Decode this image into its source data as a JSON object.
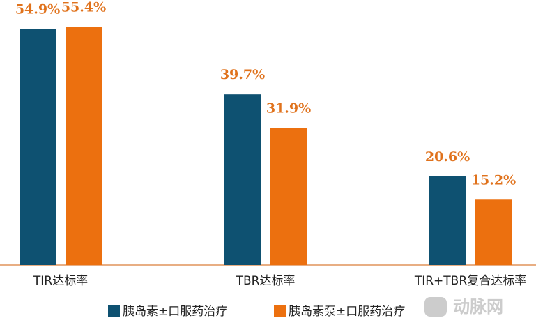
{
  "chart_data": {
    "type": "bar",
    "categories": [
      "TIR达标率",
      "TBR达标率",
      "TIR+TBR复合达标率"
    ],
    "series": [
      {
        "name": "胰岛素±口服药治疗",
        "color": "#0e5171",
        "values": [
          54.9,
          39.7,
          20.6
        ],
        "value_labels": [
          "54.9%",
          "39.7%",
          "20.6%"
        ]
      },
      {
        "name": "胰岛素泵±口服药治疗",
        "color": "#ec700f",
        "values": [
          55.4,
          31.9,
          15.2
        ],
        "value_labels": [
          "55.4%",
          "31.9%",
          "15.2%"
        ]
      }
    ],
    "ylim": [
      0,
      60
    ],
    "label_color": "#e0721c",
    "axis_color": "#e0945a"
  },
  "watermark": "动脉网"
}
